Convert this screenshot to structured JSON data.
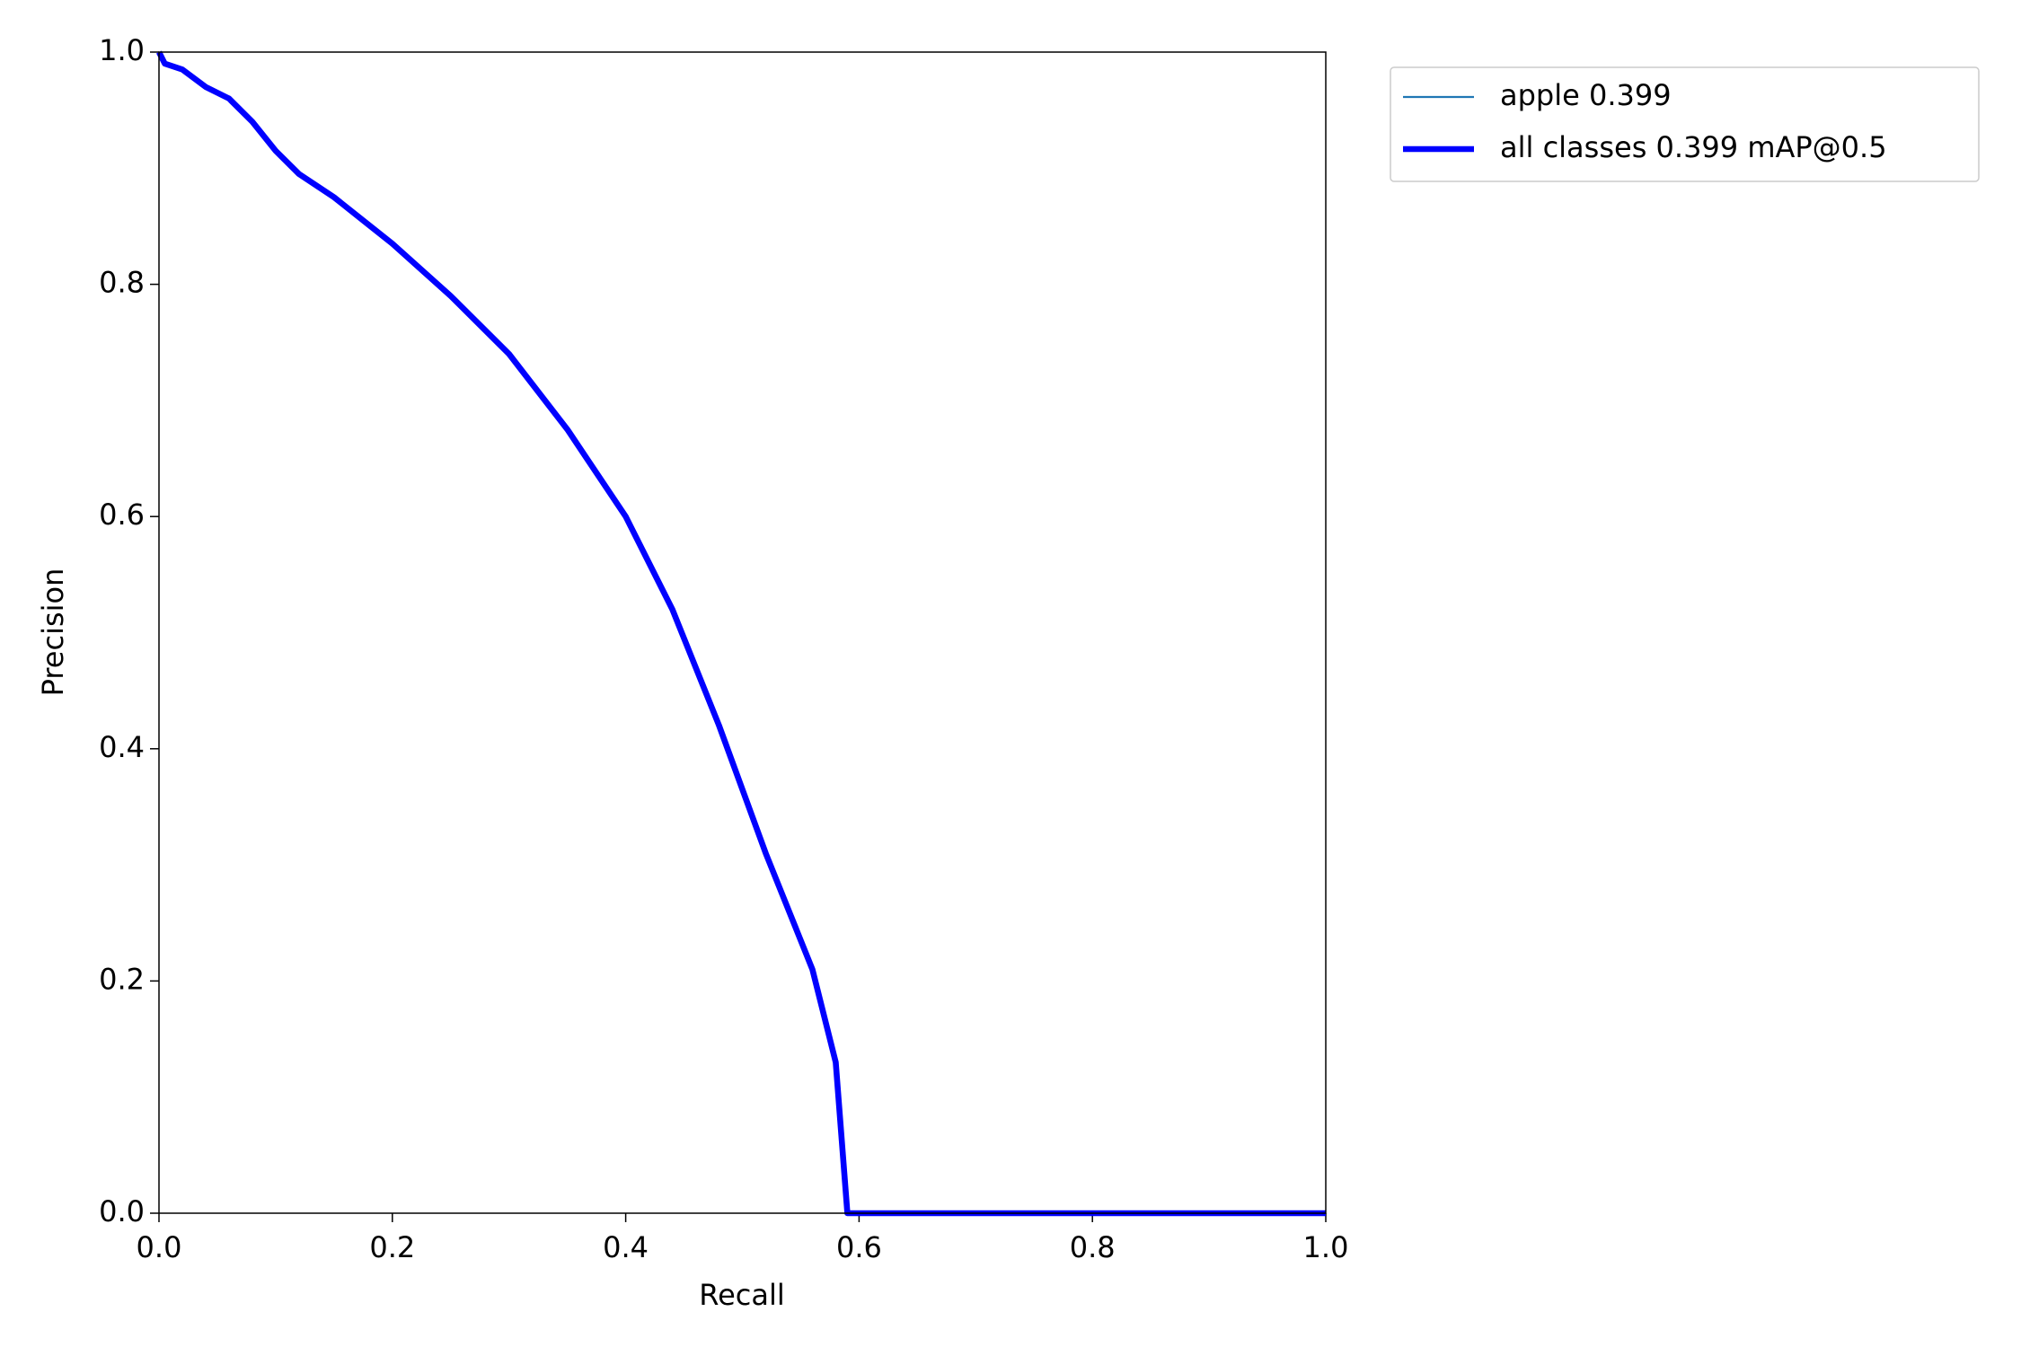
{
  "chart_data": {
    "type": "line",
    "xlabel": "Recall",
    "ylabel": "Precision",
    "x": [
      0,
      0.005,
      0.02,
      0.04,
      0.06,
      0.08,
      0.1,
      0.12,
      0.15,
      0.2,
      0.25,
      0.3,
      0.35,
      0.4,
      0.44,
      0.48,
      0.52,
      0.56,
      0.58,
      0.59,
      1.0
    ],
    "series": [
      {
        "name": "apple 0.399",
        "color": "#1f77b4",
        "width": 1,
        "values": [
          1.0,
          0.99,
          0.985,
          0.97,
          0.96,
          0.94,
          0.915,
          0.895,
          0.875,
          0.835,
          0.79,
          0.74,
          0.675,
          0.6,
          0.52,
          0.42,
          0.31,
          0.21,
          0.13,
          0.0,
          0.0
        ]
      },
      {
        "name": "all classes 0.399 mAP@0.5",
        "color": "#0000ff",
        "width": 3,
        "values": [
          1.0,
          0.99,
          0.985,
          0.97,
          0.96,
          0.94,
          0.915,
          0.895,
          0.875,
          0.835,
          0.79,
          0.74,
          0.675,
          0.6,
          0.52,
          0.42,
          0.31,
          0.21,
          0.13,
          0.0,
          0.0
        ]
      }
    ],
    "xlim": [
      0,
      1
    ],
    "ylim": [
      0,
      1
    ],
    "xticks": [
      {
        "value": 0,
        "label": "0.0"
      },
      {
        "value": 0.2,
        "label": "0.2"
      },
      {
        "value": 0.4,
        "label": "0.4"
      },
      {
        "value": 0.6,
        "label": "0.6"
      },
      {
        "value": 0.8,
        "label": "0.8"
      },
      {
        "value": 1,
        "label": "1.0"
      }
    ],
    "yticks": [
      {
        "value": 0,
        "label": "0.0"
      },
      {
        "value": 0.2,
        "label": "0.2"
      },
      {
        "value": 0.4,
        "label": "0.4"
      },
      {
        "value": 0.6,
        "label": "0.6"
      },
      {
        "value": 0.8,
        "label": "0.8"
      },
      {
        "value": 1,
        "label": "1.0"
      }
    ],
    "legend": "outside-upper-right"
  }
}
